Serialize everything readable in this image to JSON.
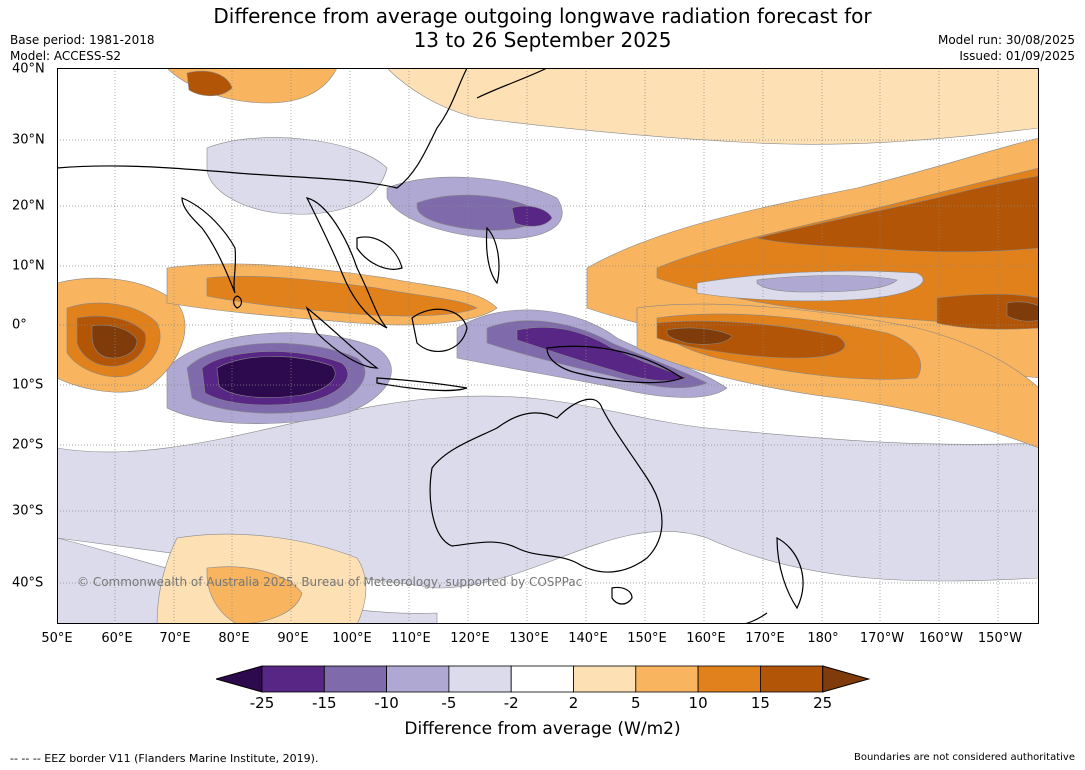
{
  "title": {
    "line1": "Difference from average outgoing longwave radiation forecast for",
    "line2": "13 to 26 September 2025"
  },
  "meta": {
    "base_period": "Base period: 1981-2018",
    "model": "Model: ACCESS-S2",
    "model_run": "Model run: 30/08/2025",
    "issued": "Issued: 01/09/2025"
  },
  "map": {
    "copyright": "© Commonwealth of Australia 2025, Bureau of Meteorology, supported by COSPPac",
    "lon_labels": [
      "50°E",
      "60°E",
      "70°E",
      "80°E",
      "90°E",
      "100°E",
      "110°E",
      "120°E",
      "130°E",
      "140°E",
      "150°E",
      "160°E",
      "170°E",
      "180°",
      "170°W",
      "160°W",
      "150°W"
    ],
    "lat_labels": [
      "40°N",
      "30°N",
      "20°N",
      "10°N",
      "0°",
      "10°S",
      "20°S",
      "30°S",
      "40°S"
    ]
  },
  "colorbar": {
    "title": "Difference from average (W/m2)",
    "ticks": [
      "-25",
      "-15",
      "-10",
      "-5",
      "-2",
      "2",
      "5",
      "10",
      "15",
      "25"
    ],
    "colors": [
      "#2d0a4e",
      "#582685",
      "#7f6bab",
      "#afa8d2",
      "#dbdbec",
      "#ffffff",
      "#fde0b4",
      "#f8b45f",
      "#e0811b",
      "#b25506",
      "#7f3c0a"
    ]
  },
  "footer": {
    "left": "--  --  -- EEZ border V11 (Flanders Marine Institute, 2019).",
    "right": "Boundaries are not considered authoritative"
  }
}
